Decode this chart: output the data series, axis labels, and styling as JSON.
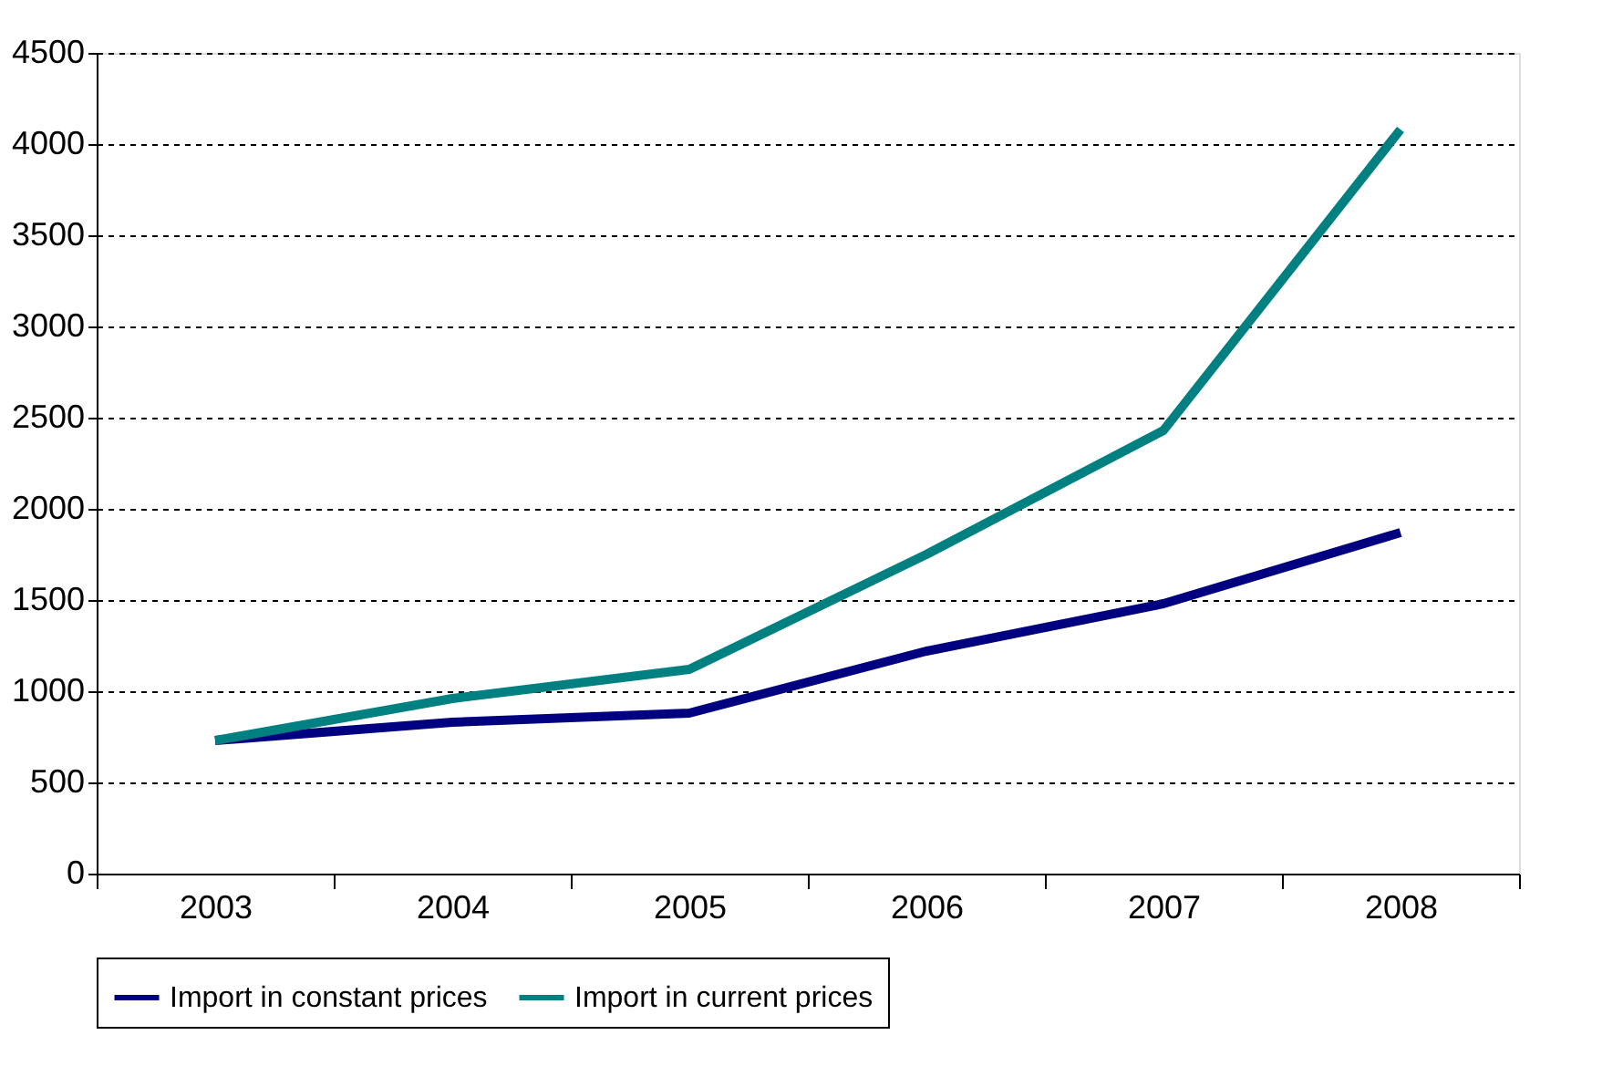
{
  "chart_data": {
    "type": "line",
    "categories": [
      "2003",
      "2004",
      "2005",
      "2006",
      "2007",
      "2008"
    ],
    "series": [
      {
        "name": "Import in constant prices",
        "color": "#000080",
        "values": [
          730,
          830,
          880,
          1220,
          1480,
          1870
        ]
      },
      {
        "name": "Import in current prices",
        "color": "#008080",
        "values": [
          730,
          960,
          1120,
          1750,
          2430,
          4080
        ]
      }
    ],
    "ylim": [
      0,
      4500
    ],
    "yticks": [
      0,
      500,
      1000,
      1500,
      2000,
      2500,
      3000,
      3500,
      4000,
      4500
    ],
    "grid": "y",
    "legend": "bottom",
    "marker": "none",
    "line_style": "solid"
  }
}
